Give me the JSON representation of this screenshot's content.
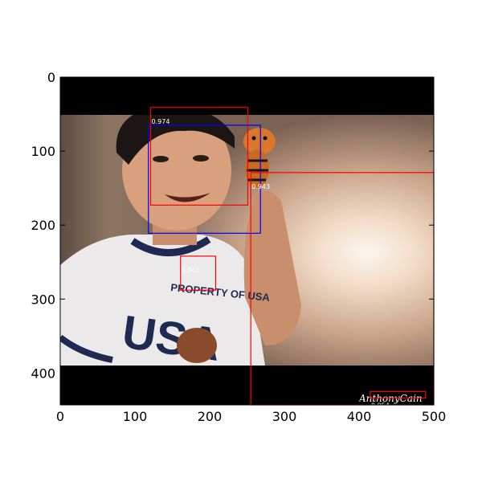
{
  "figure": {
    "x_ticks": [
      0,
      100,
      200,
      300,
      400,
      500
    ],
    "y_ticks": [
      0,
      100,
      200,
      300,
      400
    ],
    "xlim": [
      0,
      500
    ],
    "ylim": [
      443,
      0
    ],
    "y_axis_inverted": true,
    "grid": false
  },
  "image": {
    "subject": "boy in white USA t-shirt holding a tiger finger puppet",
    "shirt_text": "PROPERTY OF USA",
    "watermark": "AnthonyCain"
  },
  "detections": [
    {
      "score": "0.974",
      "color": "#ff0000",
      "x1": 121,
      "y1": 41,
      "x2": 251,
      "y2": 173
    },
    {
      "score": "",
      "color": "#0000ff",
      "x1": 118,
      "y1": 65,
      "x2": 268,
      "y2": 211
    },
    {
      "score": "0.943",
      "color": "#ff0000",
      "x1": 255,
      "y1": 129,
      "x2": 500,
      "y2": 443
    },
    {
      "score": "0.941",
      "color": "#ff0000",
      "x1": 161,
      "y1": 242,
      "x2": 208,
      "y2": 288
    },
    {
      "score": "0.954",
      "color": "#ff0000",
      "x1": 415,
      "y1": 425,
      "x2": 489,
      "y2": 434
    }
  ]
}
